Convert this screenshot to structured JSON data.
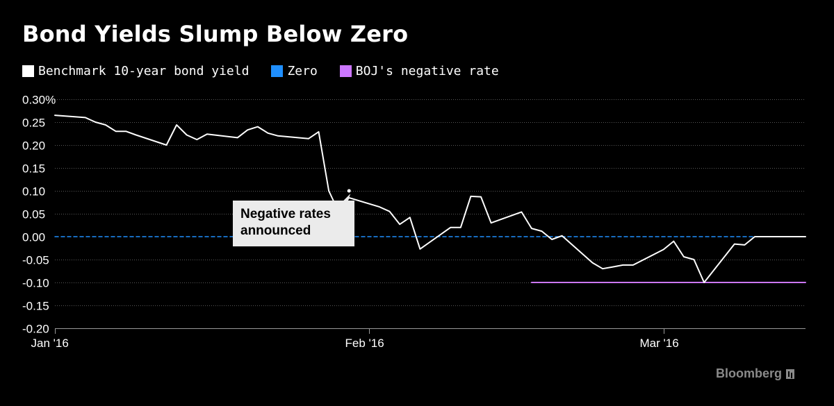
{
  "title": "Bond Yields Slump Below Zero",
  "legend": [
    {
      "label": "Benchmark 10-year bond yield",
      "color": "#ffffff"
    },
    {
      "label": "Zero",
      "color": "#1f8fff"
    },
    {
      "label": "BOJ's negative rate",
      "color": "#cc77ff"
    }
  ],
  "annotation": {
    "line1": "Negative rates",
    "line2": "announced"
  },
  "source": "Bloomberg",
  "chart_data": {
    "type": "line",
    "title": "Bond Yields Slump Below Zero",
    "xlabel": "",
    "ylabel": "",
    "ylim": [
      -0.2,
      0.3
    ],
    "xlim_days": [
      0,
      74
    ],
    "y_ticks": [
      {
        "value": 0.3,
        "label": "0.30%"
      },
      {
        "value": 0.25,
        "label": "0.25"
      },
      {
        "value": 0.2,
        "label": "0.20"
      },
      {
        "value": 0.15,
        "label": "0.15"
      },
      {
        "value": 0.1,
        "label": "0.10"
      },
      {
        "value": 0.05,
        "label": "0.05"
      },
      {
        "value": 0.0,
        "label": "0.00"
      },
      {
        "value": -0.05,
        "label": "-0.05"
      },
      {
        "value": -0.1,
        "label": "-0.10"
      },
      {
        "value": -0.15,
        "label": "-0.15"
      },
      {
        "value": -0.2,
        "label": "-0.20"
      }
    ],
    "x_ticks": [
      {
        "day": 0,
        "label": "Jan '16"
      },
      {
        "day": 31,
        "label": "Feb '16"
      },
      {
        "day": 60,
        "label": "Mar '16"
      }
    ],
    "series": [
      {
        "name": "Benchmark 10-year bond yield",
        "color": "#ffffff",
        "x": [
          0,
          3,
          4,
          5,
          6,
          7,
          8,
          11,
          12,
          13,
          14,
          15,
          18,
          19,
          20,
          21,
          22,
          25,
          26,
          27,
          28,
          29,
          32,
          33,
          34,
          35,
          36,
          39,
          40,
          41,
          42,
          43,
          46,
          47,
          48,
          49,
          50,
          53,
          54,
          55,
          56,
          57,
          60,
          61,
          62,
          63,
          64,
          67,
          68,
          69,
          70,
          71,
          74
        ],
        "values": [
          0.265,
          0.26,
          0.25,
          0.244,
          0.23,
          0.23,
          0.222,
          0.2,
          0.244,
          0.222,
          0.212,
          0.224,
          0.216,
          0.233,
          0.24,
          0.226,
          0.22,
          0.214,
          0.229,
          0.1,
          0.053,
          0.085,
          0.065,
          0.055,
          0.027,
          0.042,
          -0.027,
          0.02,
          0.02,
          0.088,
          0.087,
          0.03,
          0.054,
          0.018,
          0.012,
          -0.006,
          0.002,
          -0.057,
          -0.07,
          -0.066,
          -0.062,
          -0.062,
          -0.028,
          -0.01,
          -0.044,
          -0.05,
          -0.1,
          -0.016,
          -0.018,
          0.0,
          0.0,
          0.0,
          0.0
        ]
      },
      {
        "name": "Zero",
        "color": "#1f8fff",
        "x": [
          0,
          74
        ],
        "values": [
          0.0,
          0.0
        ]
      },
      {
        "name": "BOJ's negative rate",
        "color": "#cc77ff",
        "x": [
          47,
          74
        ],
        "values": [
          -0.1,
          -0.1
        ]
      }
    ],
    "annotation_point": {
      "day": 29,
      "value": 0.1
    }
  }
}
